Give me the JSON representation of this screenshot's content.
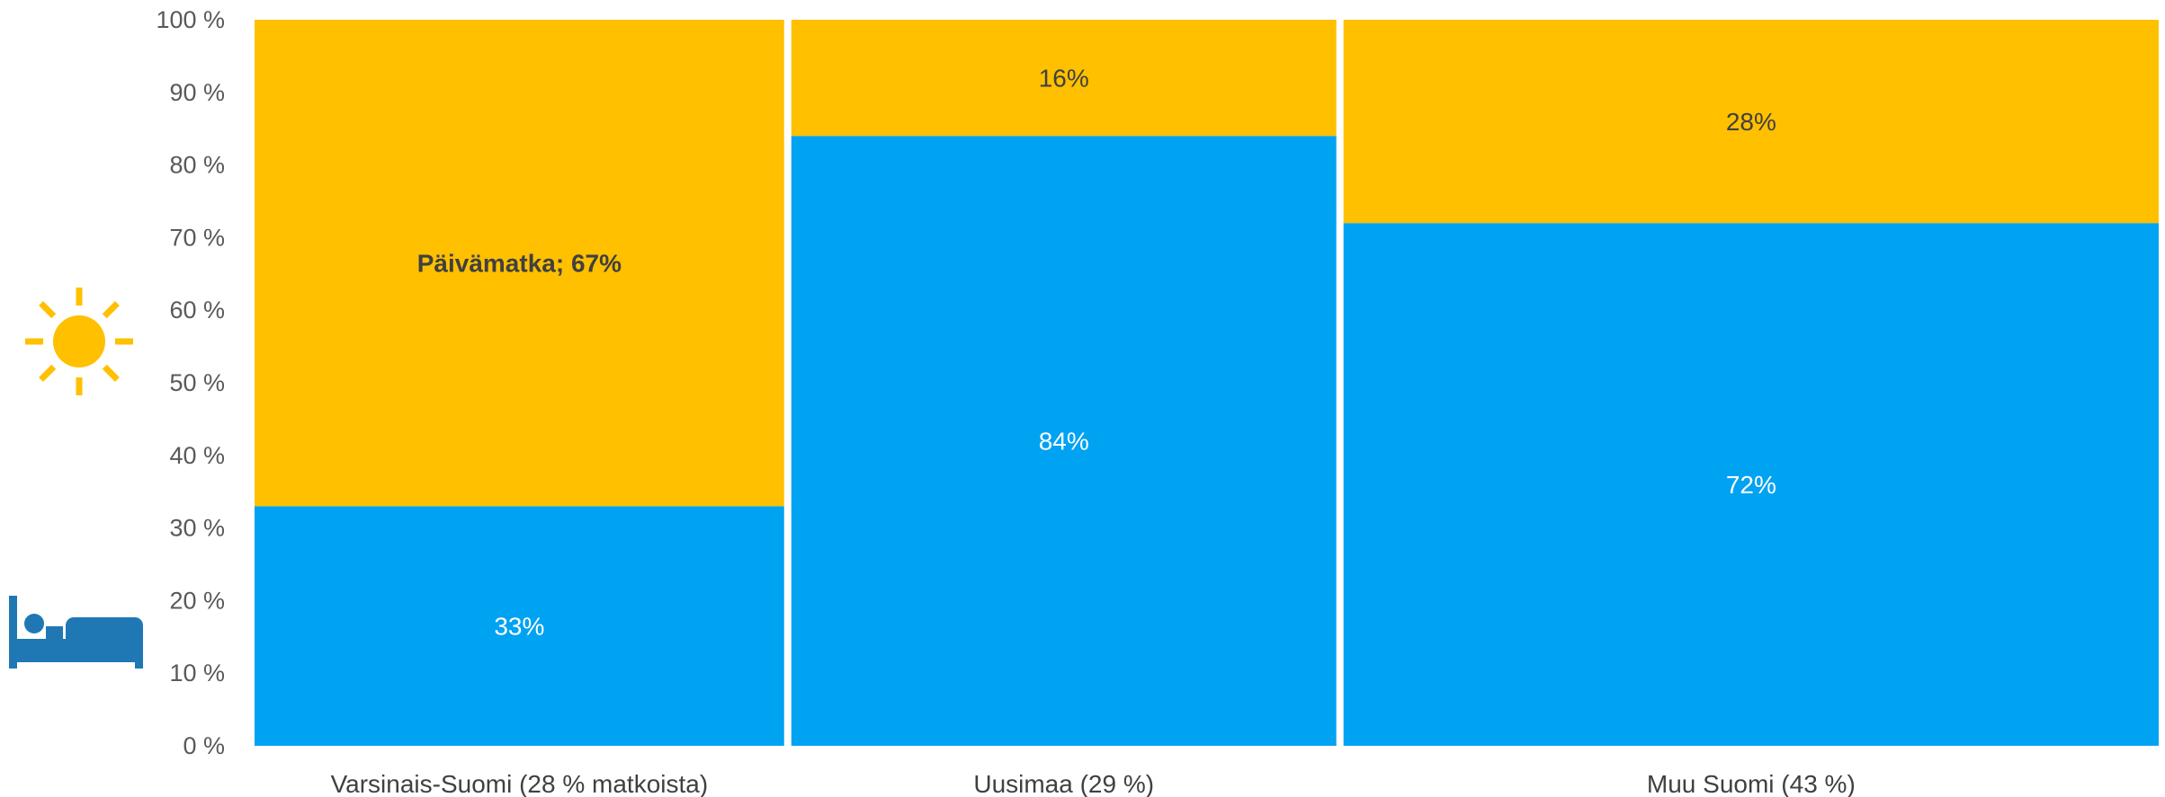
{
  "chart_data": {
    "type": "bar",
    "subtype": "marimekko-100pct-stacked",
    "y_ticks": [
      "0 %",
      "10 %",
      "20 %",
      "30 %",
      "40 %",
      "50 %",
      "60 %",
      "70 %",
      "80 %",
      "90 %",
      "100 %"
    ],
    "ylim": [
      0,
      100
    ],
    "grid": false,
    "categories": [
      "Varsinais-Suomi (28 % matkoista)",
      "Uusimaa (29 %)",
      "Muu Suomi (43 %)"
    ],
    "category_shares": [
      28,
      29,
      43
    ],
    "series": [
      {
        "key": "overnight",
        "values": [
          33,
          84,
          72
        ],
        "labels": [
          "33%",
          "84%",
          "72%"
        ],
        "color": "#00A2F2"
      },
      {
        "key": "daytrip",
        "values": [
          67,
          16,
          28
        ],
        "labels": [
          "Päivämatka; 67%",
          "16%",
          "28%"
        ],
        "color": "#FFC000"
      }
    ],
    "icons": [
      "sun-icon",
      "bed-icon"
    ],
    "icon_colors": {
      "sun": "#FFC000",
      "bed": "#1F78B4"
    },
    "label_colors": {
      "overnight": "#ffffff",
      "daytrip": "#404040"
    }
  }
}
